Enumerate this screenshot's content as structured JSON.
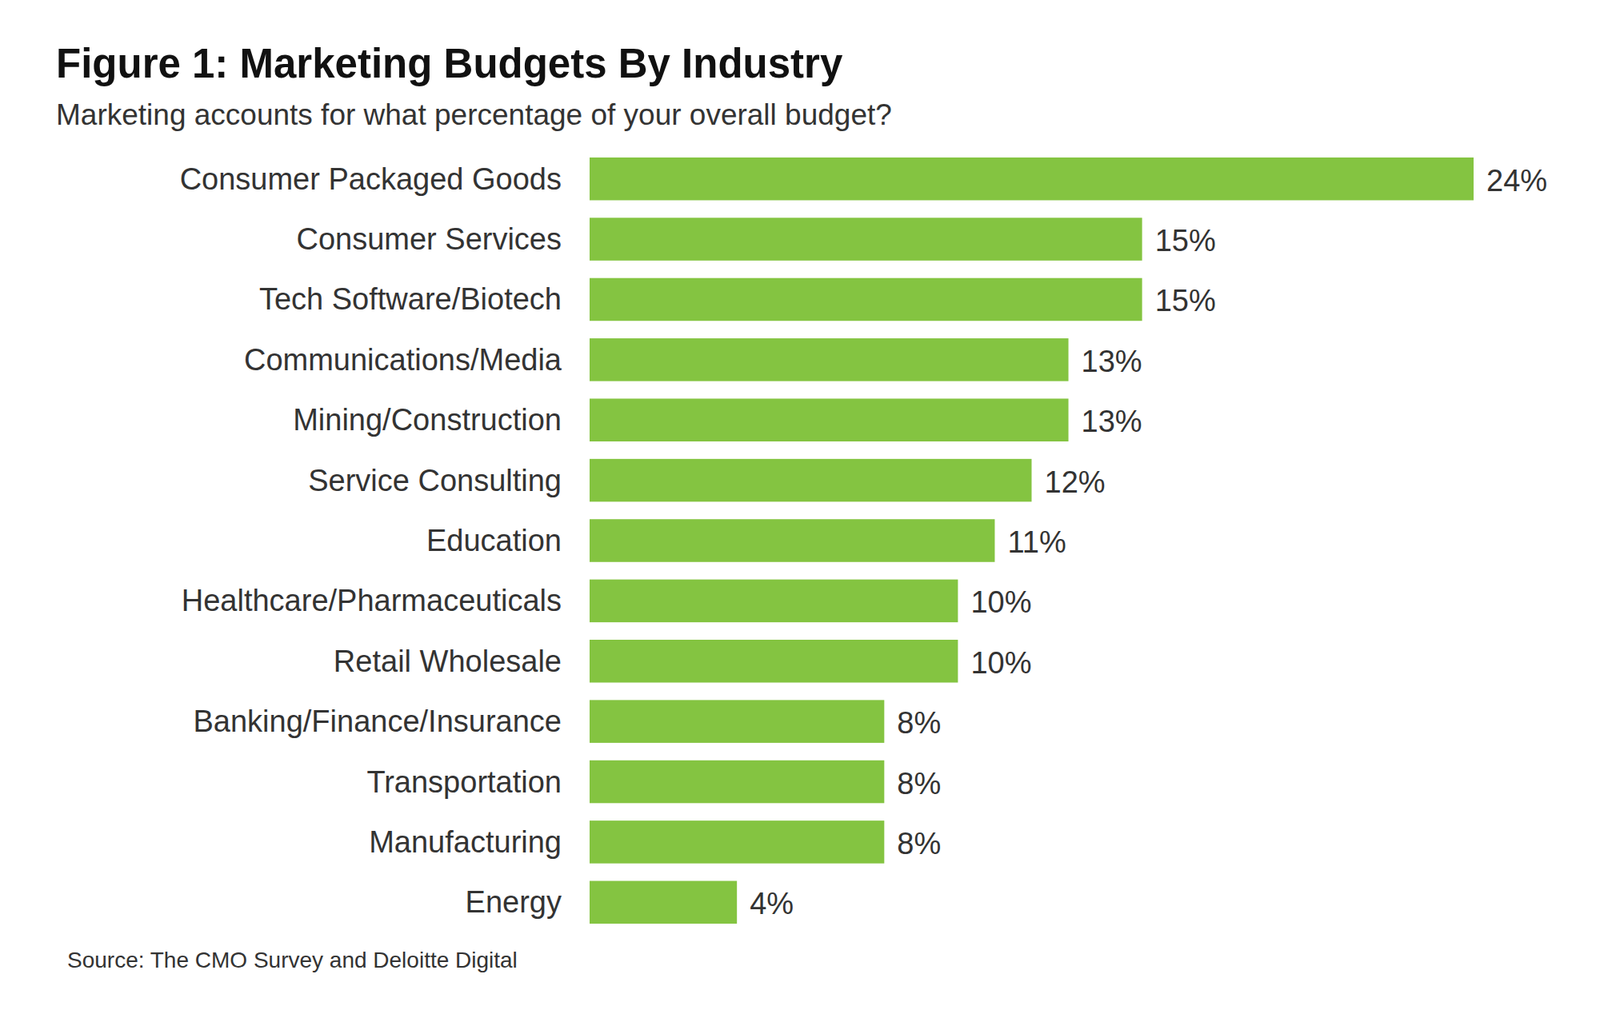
{
  "chart_data": {
    "type": "bar",
    "orientation": "horizontal",
    "title": "Figure 1: Marketing Budgets By Industry",
    "subtitle": "Marketing accounts for what percentage of your overall budget?",
    "source": "Source: The CMO Survey and Deloitte Digital",
    "categories": [
      "Consumer Packaged Goods",
      "Consumer Services",
      "Tech Software/Biotech",
      "Communications/Media",
      "Mining/Construction",
      "Service Consulting",
      "Education",
      "Healthcare/Pharmaceuticals",
      "Retail Wholesale",
      "Banking/Finance/Insurance",
      "Transportation",
      "Manufacturing",
      "Energy"
    ],
    "values": [
      24,
      15,
      15,
      13,
      13,
      12,
      11,
      10,
      10,
      8,
      8,
      8,
      4
    ],
    "value_labels": [
      "24%",
      "15%",
      "15%",
      "13%",
      "13%",
      "12%",
      "11%",
      "10%",
      "10%",
      "8%",
      "8%",
      "8%",
      "4%"
    ],
    "color": "#84c441",
    "data_labels": true,
    "tick_labels": false,
    "grid": false
  }
}
